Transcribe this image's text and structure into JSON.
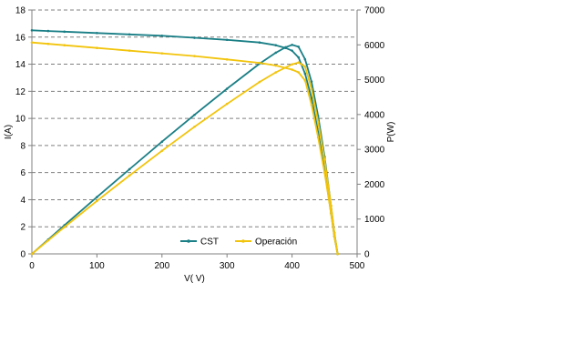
{
  "chart_data": {
    "type": "line",
    "xlabel": "V( V)",
    "ylabel_left": "I(A)",
    "ylabel_right": "P(W)",
    "xlim": [
      0,
      500
    ],
    "ylim_left": [
      0,
      18
    ],
    "ylim_right": [
      0,
      7000
    ],
    "x_ticks": [
      "0",
      "100",
      "200",
      "300",
      "400",
      "500"
    ],
    "y_left_ticks": [
      "0",
      "2",
      "4",
      "6",
      "8",
      "10",
      "12",
      "14",
      "16",
      "18"
    ],
    "y_right_ticks": [
      "0",
      "1000",
      "2000",
      "3000",
      "4000",
      "5000",
      "6000",
      "7000"
    ],
    "grid": "horizontal dashed",
    "legend_position": "bottom-right",
    "series": [
      {
        "name": "CST",
        "color": "#1a7f86",
        "curves": [
          {
            "kind": "current",
            "axis": "left",
            "x": [
              0,
              25,
              50,
              100,
              150,
              200,
              250,
              300,
              350,
              375,
              390,
              400,
              410,
              420,
              430,
              440,
              450,
              460,
              465,
              470
            ],
            "y": [
              16.5,
              16.45,
              16.4,
              16.3,
              16.2,
              16.1,
              15.95,
              15.8,
              15.6,
              15.4,
              15.2,
              15.0,
              14.5,
              13.3,
              11.5,
              9.0,
              6.2,
              3.0,
              1.3,
              0
            ]
          },
          {
            "kind": "power",
            "axis": "right",
            "x": [
              0,
              25,
              50,
              100,
              150,
              200,
              250,
              300,
              350,
              375,
              390,
              400,
              410,
              420,
              430,
              440,
              450,
              460,
              465,
              470
            ],
            "y": [
              0,
              411,
              820,
              1630,
              2430,
              3220,
              3990,
              4740,
              5460,
              5775,
              5930,
              6000,
              5945,
              5586,
              4945,
              3960,
              2790,
              1380,
              605,
              0
            ]
          }
        ]
      },
      {
        "name": "Operación",
        "color": "#f2c40c",
        "curves": [
          {
            "kind": "current",
            "axis": "left",
            "x": [
              0,
              25,
              50,
              100,
              150,
              200,
              250,
              300,
              350,
              375,
              400,
              410,
              420,
              430,
              440,
              450,
              460,
              465,
              470
            ],
            "y": [
              15.6,
              15.5,
              15.4,
              15.2,
              15.0,
              14.8,
              14.6,
              14.35,
              14.1,
              13.9,
              13.6,
              13.4,
              12.8,
              11.0,
              8.6,
              6.0,
              3.0,
              1.3,
              0
            ]
          },
          {
            "kind": "power",
            "axis": "right",
            "x": [
              0,
              25,
              50,
              100,
              150,
              200,
              250,
              300,
              350,
              375,
              400,
              410,
              420,
              430,
              440,
              450,
              460,
              465,
              470
            ],
            "y": [
              0,
              387,
              770,
              1520,
              2250,
              2960,
              3650,
              4305,
              4935,
              5210,
              5440,
              5494,
              5376,
              4730,
              3784,
              2700,
              1380,
              605,
              0
            ]
          }
        ]
      }
    ]
  }
}
